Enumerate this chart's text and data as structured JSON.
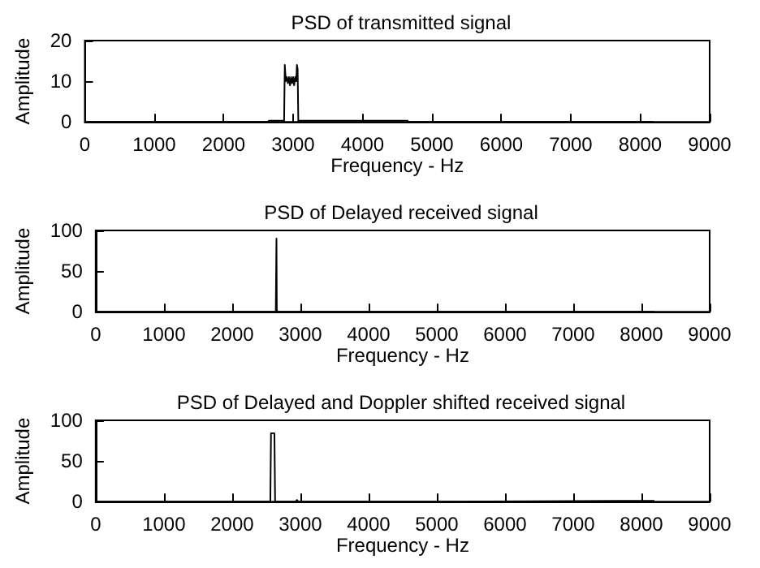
{
  "chart_data": [
    {
      "type": "line",
      "title": "PSD of transmitted signal",
      "xlabel": "Frequency - Hz",
      "ylabel": "Amplitude",
      "xlim": [
        0,
        9000
      ],
      "ylim": [
        0,
        20
      ],
      "xticks": [
        0,
        1000,
        2000,
        3000,
        4000,
        5000,
        6000,
        7000,
        8000,
        9000
      ],
      "yticks": [
        0,
        10,
        20
      ],
      "series": [
        {
          "color": "#000000",
          "x": [
            0,
            2640,
            2650,
            2860,
            2870,
            2880,
            2895,
            2910,
            2925,
            2940,
            2955,
            2970,
            2985,
            3000,
            3015,
            3030,
            3045,
            3055,
            3065,
            3075,
            3085,
            4650,
            4660,
            8192
          ],
          "values": [
            0,
            0,
            0.3,
            0.3,
            0,
            14,
            10,
            11,
            9.5,
            11,
            9,
            11,
            9.5,
            11,
            9,
            11,
            10,
            14,
            13,
            0,
            0.3,
            0.3,
            0,
            0
          ]
        }
      ]
    },
    {
      "type": "line",
      "title": "PSD of Delayed received signal",
      "xlabel": "Frequency - Hz",
      "ylabel": "Amplitude",
      "xlim": [
        0,
        9000
      ],
      "ylim": [
        0,
        100
      ],
      "xticks": [
        0,
        1000,
        2000,
        3000,
        4000,
        5000,
        6000,
        7000,
        8000,
        9000
      ],
      "yticks": [
        0,
        50,
        100
      ],
      "series": [
        {
          "color": "#000000",
          "x": [
            0,
            2640,
            2650,
            2655,
            2665,
            8192
          ],
          "values": [
            0,
            0,
            90,
            2,
            0,
            0
          ]
        }
      ]
    },
    {
      "type": "line",
      "title": "PSD of Delayed and Doppler shifted received signal",
      "xlabel": "Frequency - Hz",
      "ylabel": "Amplitude",
      "xlim": [
        0,
        9000
      ],
      "ylim": [
        0,
        100
      ],
      "xticks": [
        0,
        1000,
        2000,
        3000,
        4000,
        5000,
        6000,
        7000,
        8000,
        9000
      ],
      "yticks": [
        0,
        50,
        100
      ],
      "series": [
        {
          "color": "#000000",
          "x": [
            0,
            2560,
            2570,
            2590,
            2600,
            2620,
            2630,
            2930,
            2950,
            2970,
            5100,
            5110,
            8190,
            8200
          ],
          "values": [
            0,
            0,
            84,
            84,
            84,
            84,
            0,
            0,
            2,
            0,
            0,
            1,
            1,
            0
          ]
        }
      ]
    }
  ]
}
